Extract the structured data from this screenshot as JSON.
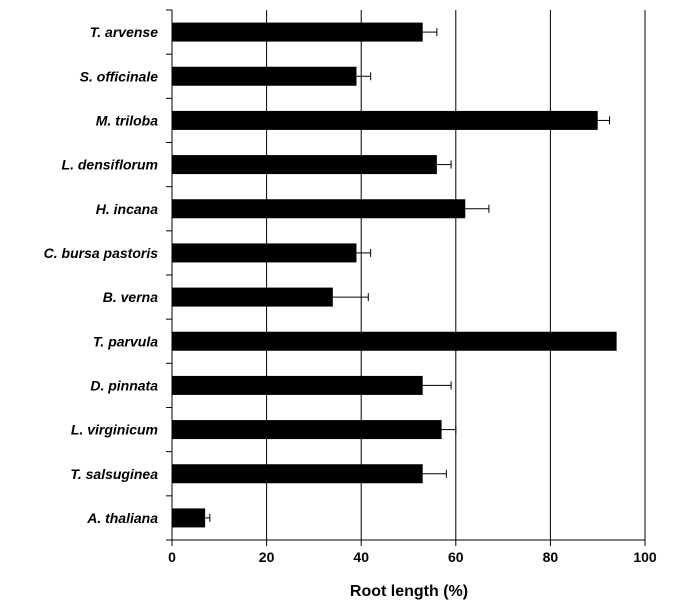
{
  "chart_data": {
    "type": "bar",
    "orientation": "horizontal",
    "title": "",
    "xlabel": "Root length (%)",
    "ylabel": "",
    "xlim": [
      0,
      100
    ],
    "xticks": [
      0,
      20,
      40,
      60,
      80,
      100
    ],
    "grid": "vertical",
    "bar_color": "#000000",
    "categories": [
      "T. arvense",
      "S. officinale",
      "M. triloba",
      "L. densiflorum",
      "H. incana",
      "C. bursa pastoris",
      "B. verna",
      "T. parvula",
      "D. pinnata",
      "L. virginicum",
      "T. salsuginea",
      "A. thaliana"
    ],
    "values": [
      53,
      39,
      90,
      56,
      62,
      39,
      34,
      94,
      53,
      57,
      53,
      7
    ],
    "errors": [
      3,
      3,
      2.5,
      3,
      5,
      3,
      7.5,
      0,
      6,
      3,
      5,
      1
    ]
  }
}
